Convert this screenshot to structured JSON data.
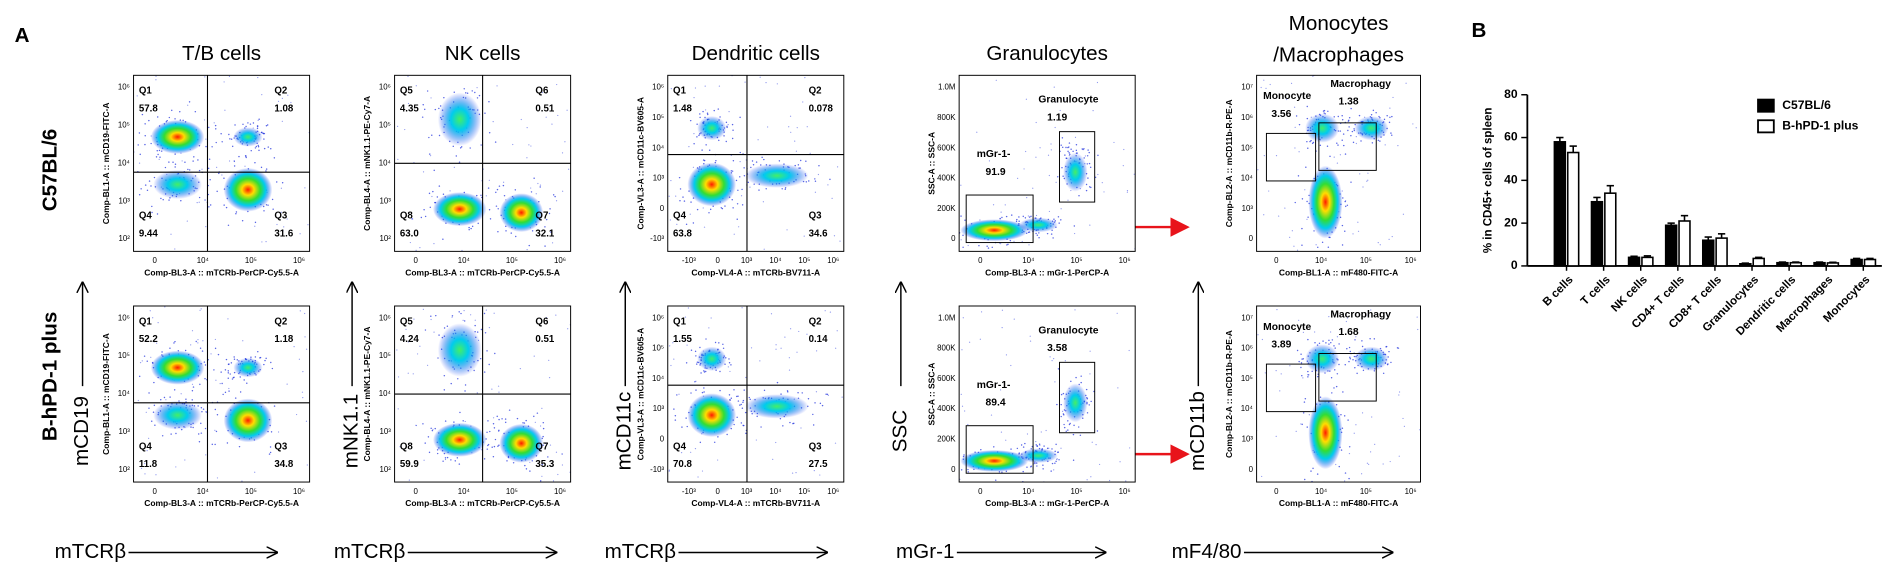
{
  "panel_a": {
    "label": "A",
    "rows": [
      "C57BL/6",
      "B-hPD-1 plus"
    ],
    "columns": [
      {
        "title": "T/B cells",
        "x_axis_label": "mTCRβ",
        "y_axis_label": "mCD19",
        "plot_x_axis": "Comp-BL3-A :: mTCRb-PerCP-Cy5.5-A",
        "plot_y_axis": "Comp-BL1-A :: mCD19-FITC-A",
        "x_ticks": [
          "0",
          "10⁴",
          "10⁵",
          "10⁶"
        ],
        "y_ticks": [
          "10²",
          "10³",
          "10⁴",
          "10⁵",
          "10⁶"
        ],
        "plots": [
          {
            "gates": [
              {
                "name": "Q1",
                "value": "57.8"
              },
              {
                "name": "Q2",
                "value": "1.08"
              },
              {
                "name": "Q4",
                "value": "9.44"
              },
              {
                "name": "Q3",
                "value": "31.6"
              }
            ]
          },
          {
            "gates": [
              {
                "name": "Q1",
                "value": "52.2"
              },
              {
                "name": "Q2",
                "value": "1.18"
              },
              {
                "name": "Q4",
                "value": "11.8"
              },
              {
                "name": "Q3",
                "value": "34.8"
              }
            ]
          }
        ]
      },
      {
        "title": "NK cells",
        "x_axis_label": "mTCRβ",
        "y_axis_label": "mNK1.1",
        "plot_x_axis": "Comp-BL3-A :: mTCRb-PerCP-Cy5.5-A",
        "plot_y_axis": "Comp-BL4-A :: mNK1.1-PE-Cy7-A",
        "x_ticks": [
          "0",
          "10⁴",
          "10⁵",
          "10⁶"
        ],
        "y_ticks": [
          "10²",
          "10³",
          "10⁴",
          "10⁵",
          "10⁶"
        ],
        "plots": [
          {
            "gates": [
              {
                "name": "Q5",
                "value": "4.35"
              },
              {
                "name": "Q6",
                "value": "0.51"
              },
              {
                "name": "Q8",
                "value": "63.0"
              },
              {
                "name": "Q7",
                "value": "32.1"
              }
            ]
          },
          {
            "gates": [
              {
                "name": "Q5",
                "value": "4.24"
              },
              {
                "name": "Q6",
                "value": "0.51"
              },
              {
                "name": "Q8",
                "value": "59.9"
              },
              {
                "name": "Q7",
                "value": "35.3"
              }
            ]
          }
        ]
      },
      {
        "title": "Dendritic cells",
        "x_axis_label": "mTCRβ",
        "y_axis_label": "mCD11c",
        "plot_x_axis": "Comp-VL4-A :: mTCRb-BV711-A",
        "plot_y_axis": "Comp-VL3-A :: mCD11c-BV605-A",
        "x_ticks": [
          "-10³",
          "0",
          "10³",
          "10⁴",
          "10⁵",
          "10⁶"
        ],
        "y_ticks": [
          "-10³",
          "0",
          "10³",
          "10⁴",
          "10⁵",
          "10⁶"
        ],
        "plots": [
          {
            "gates": [
              {
                "name": "Q1",
                "value": "1.48"
              },
              {
                "name": "Q2",
                "value": "0.078"
              },
              {
                "name": "Q4",
                "value": "63.8"
              },
              {
                "name": "Q3",
                "value": "34.6"
              }
            ]
          },
          {
            "gates": [
              {
                "name": "Q1",
                "value": "1.55"
              },
              {
                "name": "Q2",
                "value": "0.14"
              },
              {
                "name": "Q4",
                "value": "70.8"
              },
              {
                "name": "Q3",
                "value": "27.5"
              }
            ]
          }
        ]
      },
      {
        "title": "Granulocytes",
        "x_axis_label": "mGr-1",
        "y_axis_label": "SSC",
        "plot_x_axis": "Comp-BL3-A :: mGr-1-PerCP-A",
        "plot_y_axis": "SSC-A :: SSC-A",
        "x_ticks": [
          "0",
          "10⁴",
          "10⁵",
          "10⁶"
        ],
        "y_ticks": [
          "0",
          "200K",
          "400K",
          "600K",
          "800K",
          "1.0M"
        ],
        "plots": [
          {
            "gates": [
              {
                "name": "Granulocyte",
                "value": "1.19"
              },
              {
                "name": "mGr-1-",
                "value": "91.9"
              }
            ]
          },
          {
            "gates": [
              {
                "name": "Granulocyte",
                "value": "3.58"
              },
              {
                "name": "mGr-1-",
                "value": "89.4"
              }
            ]
          }
        ]
      },
      {
        "title": "Monocytes",
        "title_line2": "/Macrophages",
        "x_axis_label": "mF4/80",
        "y_axis_label": "mCD11b",
        "plot_x_axis": "Comp-BL1-A :: mF480-FITC-A",
        "plot_y_axis": "Comp-BL2-A :: mCD11b-R-PE-A",
        "x_ticks": [
          "0",
          "10⁴",
          "10⁵",
          "10⁶"
        ],
        "y_ticks": [
          "0",
          "10³",
          "10⁴",
          "10⁵",
          "10⁶",
          "10⁷"
        ],
        "plots": [
          {
            "gates": [
              {
                "name": "Monocyte",
                "value": "3.56"
              },
              {
                "name": "Macrophagy",
                "value": "1.38"
              }
            ]
          },
          {
            "gates": [
              {
                "name": "Monocyte",
                "value": "3.89"
              },
              {
                "name": "Macrophagy",
                "value": "1.68"
              }
            ]
          }
        ]
      }
    ]
  },
  "chart_data": {
    "panel_label": "B",
    "type": "bar",
    "ylabel": "% in CD45+ cells of spleen",
    "categories": [
      "B cells",
      "T cells",
      "NK cells",
      "CD4+ T cells",
      "CD8+ T cells",
      "Granulocytes",
      "Dendritic cells",
      "Macrophages",
      "Monocytes"
    ],
    "series": [
      {
        "name": "C57BL/6",
        "color": "#000000",
        "values": [
          58,
          30,
          4,
          19,
          12,
          1,
          1.5,
          1.5,
          3
        ],
        "errors": [
          2,
          2,
          0.5,
          1,
          1.5,
          0.3,
          0.3,
          0.3,
          0.5
        ]
      },
      {
        "name": "B-hPD-1 plus",
        "color": "#ffffff",
        "values": [
          53,
          34,
          4,
          21,
          13,
          3.5,
          1.5,
          1.4,
          3
        ],
        "errors": [
          3,
          3.5,
          0.7,
          2.5,
          2,
          0.5,
          0.3,
          0.3,
          0.5
        ]
      }
    ],
    "ylim": [
      0,
      80
    ],
    "yticks": [
      0,
      20,
      40,
      60,
      80
    ],
    "legend": "top-right"
  }
}
